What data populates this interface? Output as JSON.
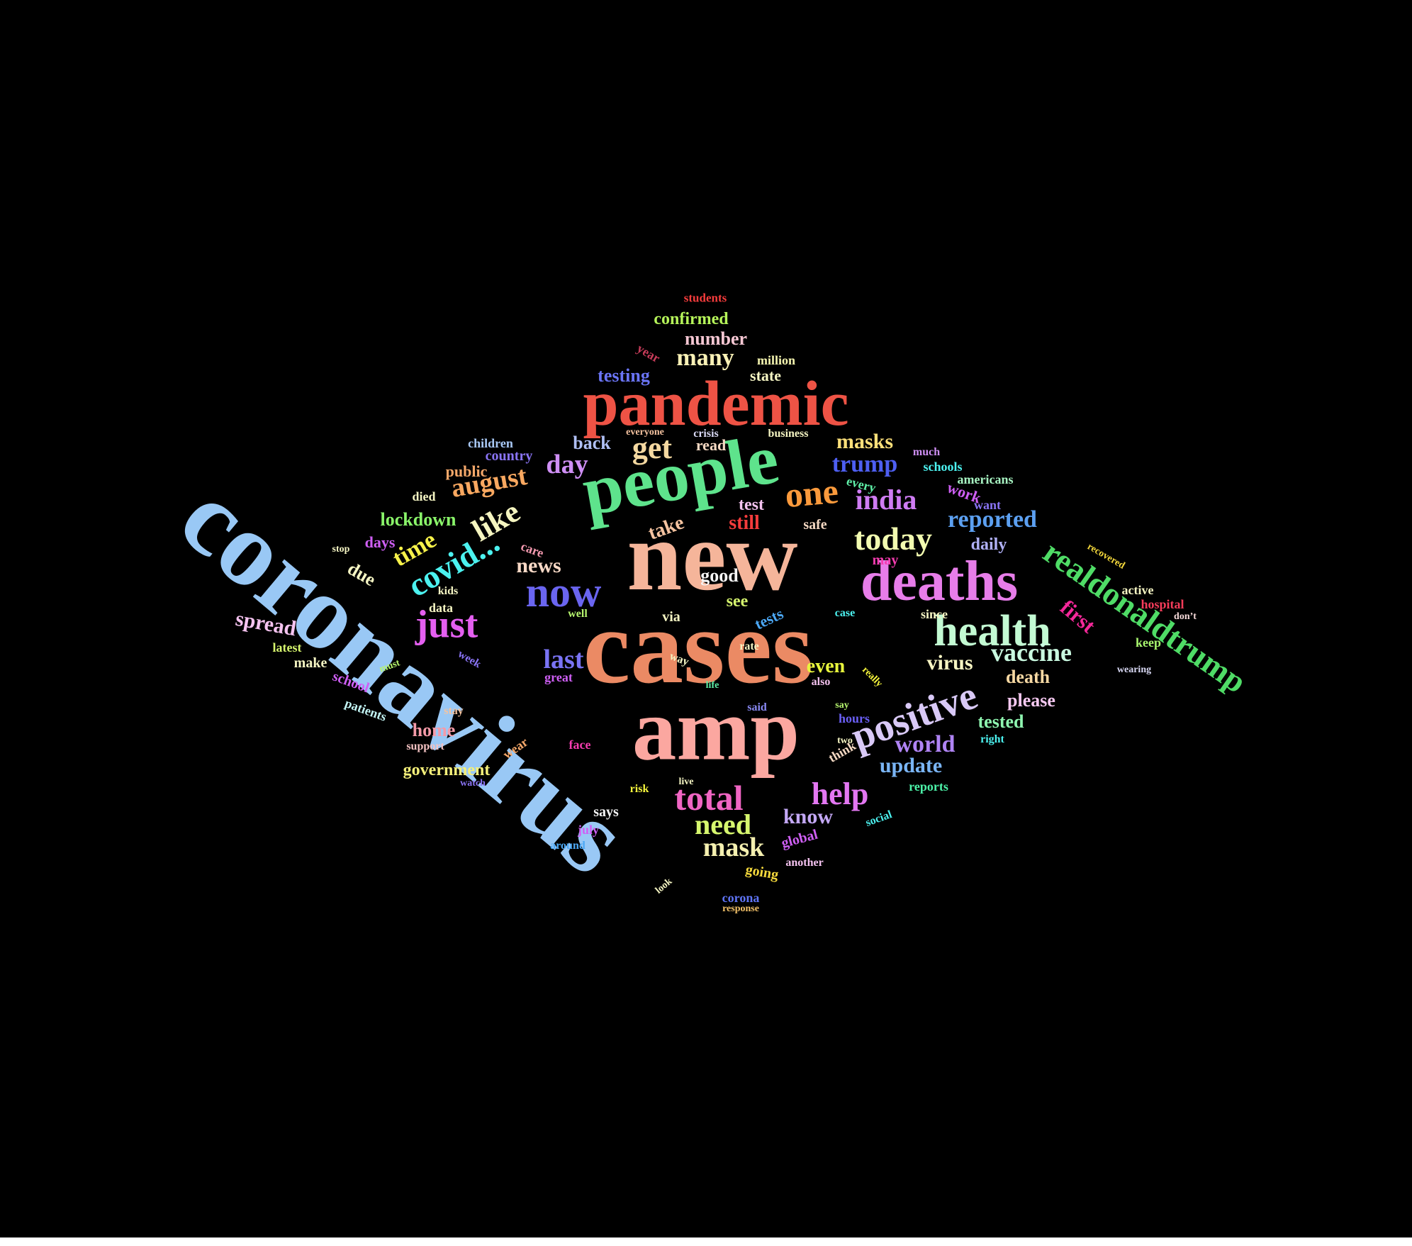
{
  "colors": {
    "background": "#000000"
  },
  "words": [
    {
      "text": "coronavirus",
      "color": "#99c8f5"
    },
    {
      "text": "cases",
      "color": "#eb8a64"
    },
    {
      "text": "new",
      "color": "#f5b59a"
    },
    {
      "text": "amp",
      "color": "#fba7a0"
    },
    {
      "text": "people",
      "color": "#5ee38c"
    },
    {
      "text": "pandemic",
      "color": "#ee5345"
    },
    {
      "text": "deaths",
      "color": "#e77de9"
    },
    {
      "text": "realdonaldtrump",
      "color": "#4fdc66"
    },
    {
      "text": "health",
      "color": "#c3fad3"
    },
    {
      "text": "positive",
      "color": "#d9c9f7"
    },
    {
      "text": "now",
      "color": "#6a65f0"
    },
    {
      "text": "just",
      "color": "#e45ff0"
    },
    {
      "text": "covid...",
      "color": "#4cf2f0"
    },
    {
      "text": "today",
      "color": "#f2fbb0"
    },
    {
      "text": "india",
      "color": "#cf7cf3"
    },
    {
      "text": "one",
      "color": "#fb9a3c"
    },
    {
      "text": "get",
      "color": "#f4d8a0"
    },
    {
      "text": "total",
      "color": "#f065c3"
    },
    {
      "text": "help",
      "color": "#e377f2"
    },
    {
      "text": "like",
      "color": "#f5f5c0"
    },
    {
      "text": "vaccine",
      "color": "#c9f9e0"
    },
    {
      "text": "last",
      "color": "#7a74f5"
    },
    {
      "text": "reported",
      "color": "#5ca0f1"
    },
    {
      "text": "world",
      "color": "#b084f5"
    },
    {
      "text": "update",
      "color": "#7ab5f5"
    },
    {
      "text": "need",
      "color": "#d6f66e"
    },
    {
      "text": "mask",
      "color": "#f5f0b0"
    },
    {
      "text": "trump",
      "color": "#4e5ff2"
    },
    {
      "text": "masks",
      "color": "#fde07a"
    },
    {
      "text": "august",
      "color": "#f9a860"
    },
    {
      "text": "day",
      "color": "#cf8ff5"
    },
    {
      "text": "time",
      "color": "#f7f24a"
    },
    {
      "text": "first",
      "color": "#f5289a"
    },
    {
      "text": "news",
      "color": "#f8d9c6"
    },
    {
      "text": "many",
      "color": "#f9f1b6"
    },
    {
      "text": "number",
      "color": "#f7c8d4"
    },
    {
      "text": "confirmed",
      "color": "#b6f55a"
    },
    {
      "text": "know",
      "color": "#c3a8f5"
    },
    {
      "text": "lockdown",
      "color": "#8af56a"
    },
    {
      "text": "virus",
      "color": "#f7f5c3"
    },
    {
      "text": "death",
      "color": "#f8d9a3"
    },
    {
      "text": "tested",
      "color": "#8ff5b0"
    },
    {
      "text": "please",
      "color": "#f5c8f0"
    },
    {
      "text": "even",
      "color": "#e8f53c"
    },
    {
      "text": "spread",
      "color": "#f5c3f0"
    },
    {
      "text": "home",
      "color": "#f59aa8"
    },
    {
      "text": "government",
      "color": "#f5f07a"
    },
    {
      "text": "testing",
      "color": "#6a74f5"
    },
    {
      "text": "students",
      "color": "#f53c3c"
    },
    {
      "text": "still",
      "color": "#f53c3c"
    },
    {
      "text": "good",
      "color": "#f5f5f5"
    },
    {
      "text": "take",
      "color": "#f5c3a0"
    },
    {
      "text": "back",
      "color": "#b0c0f5"
    },
    {
      "text": "state",
      "color": "#f5f5c3"
    },
    {
      "text": "million",
      "color": "#f5f5b0"
    },
    {
      "text": "year",
      "color": "#c83c5a"
    },
    {
      "text": "due",
      "color": "#f5f5c3"
    },
    {
      "text": "days",
      "color": "#cf5ff5"
    },
    {
      "text": "daily",
      "color": "#b0b0f5"
    },
    {
      "text": "see",
      "color": "#d6f56e"
    },
    {
      "text": "test",
      "color": "#f5c3f0"
    },
    {
      "text": "safe",
      "color": "#f5d9c3"
    },
    {
      "text": "public",
      "color": "#f5a86a"
    },
    {
      "text": "country",
      "color": "#8a74f5"
    },
    {
      "text": "children",
      "color": "#a8c8f5"
    },
    {
      "text": "died",
      "color": "#f5f5c3"
    },
    {
      "text": "work",
      "color": "#cf5ff5"
    },
    {
      "text": "every",
      "color": "#5ff0a8"
    },
    {
      "text": "want",
      "color": "#8a74f5"
    },
    {
      "text": "schools",
      "color": "#4cf2f0"
    },
    {
      "text": "americans",
      "color": "#a8f5c3"
    },
    {
      "text": "much",
      "color": "#cf8ff5"
    },
    {
      "text": "business",
      "color": "#f5f5c3"
    },
    {
      "text": "crisis",
      "color": "#d9d9f5"
    },
    {
      "text": "read",
      "color": "#f5d9c3"
    },
    {
      "text": "everyone",
      "color": "#f5c3a0"
    },
    {
      "text": "stop",
      "color": "#f5f5c3"
    },
    {
      "text": "care",
      "color": "#f59ab0"
    },
    {
      "text": "kids",
      "color": "#f5f5c3"
    },
    {
      "text": "data",
      "color": "#f5f5c3"
    },
    {
      "text": "well",
      "color": "#b6f56e"
    },
    {
      "text": "via",
      "color": "#f5f5c3"
    },
    {
      "text": "tests",
      "color": "#4ca8f5"
    },
    {
      "text": "case",
      "color": "#4cf2f0"
    },
    {
      "text": "since",
      "color": "#f5f5c3"
    },
    {
      "text": "hospital",
      "color": "#f53c5a"
    },
    {
      "text": "don’t",
      "color": "#f5d9d9"
    },
    {
      "text": "active",
      "color": "#f5f5c3"
    },
    {
      "text": "keep",
      "color": "#a8f56e"
    },
    {
      "text": "wearing",
      "color": "#d9d9f5"
    },
    {
      "text": "recovered",
      "color": "#f5d93c"
    },
    {
      "text": "may",
      "color": "#f53cb0"
    },
    {
      "text": "latest",
      "color": "#d6f56e"
    },
    {
      "text": "make",
      "color": "#f5f5c3"
    },
    {
      "text": "must",
      "color": "#b6f56e"
    },
    {
      "text": "week",
      "color": "#8a74f5"
    },
    {
      "text": "school",
      "color": "#cf5ff5"
    },
    {
      "text": "patients",
      "color": "#c3f5f5"
    },
    {
      "text": "stay",
      "color": "#f5c3a0"
    },
    {
      "text": "support",
      "color": "#f5c3c3"
    },
    {
      "text": "wear",
      "color": "#f5a86a"
    },
    {
      "text": "face",
      "color": "#f53cb0"
    },
    {
      "text": "watch",
      "color": "#8a74f5"
    },
    {
      "text": "great",
      "color": "#cf5ff5"
    },
    {
      "text": "way",
      "color": "#f5f5c3"
    },
    {
      "text": "rate",
      "color": "#f5f5c3"
    },
    {
      "text": "life",
      "color": "#5ff0a8"
    },
    {
      "text": "said",
      "color": "#8a8af5"
    },
    {
      "text": "also",
      "color": "#f5c3f0"
    },
    {
      "text": "really",
      "color": "#f5f53c"
    },
    {
      "text": "say",
      "color": "#b6f56e"
    },
    {
      "text": "hours",
      "color": "#6a5ff5"
    },
    {
      "text": "two",
      "color": "#f5f5c3"
    },
    {
      "text": "think",
      "color": "#f5d9c3"
    },
    {
      "text": "reports",
      "color": "#4cf2a8"
    },
    {
      "text": "right",
      "color": "#4cf2f0"
    },
    {
      "text": "social",
      "color": "#4cf2f0"
    },
    {
      "text": "global",
      "color": "#cf5ff5"
    },
    {
      "text": "another",
      "color": "#f5c3f0"
    },
    {
      "text": "going",
      "color": "#f5d93c"
    },
    {
      "text": "says",
      "color": "#f5f5f5"
    },
    {
      "text": "risk",
      "color": "#f5f53c"
    },
    {
      "text": "live",
      "color": "#f5f5c3"
    },
    {
      "text": "july",
      "color": "#cf5ff5"
    },
    {
      "text": "around",
      "color": "#4ca8f5"
    },
    {
      "text": "look",
      "color": "#f5f5c3"
    },
    {
      "text": "corona",
      "color": "#5f74f5"
    },
    {
      "text": "response",
      "color": "#f5c36a"
    }
  ]
}
